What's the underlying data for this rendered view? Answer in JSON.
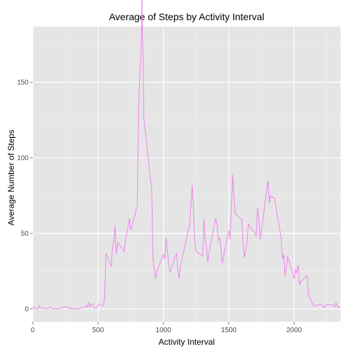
{
  "chart_data": {
    "type": "line",
    "title": "Average of Steps by Activity Interval",
    "xlabel": "Activity Interval",
    "ylabel": "Average Number of Steps",
    "xlim": [
      0,
      2355
    ],
    "ylim": [
      -8.5,
      187
    ],
    "xticks": [
      0,
      500,
      1000,
      1500,
      2000
    ],
    "yticks": [
      0,
      50,
      100,
      150
    ],
    "xtick_labels": [
      "0",
      "500",
      "1000",
      "1500",
      "2000"
    ],
    "ytick_labels": [
      "0",
      "50",
      "100",
      "150"
    ],
    "grid": true,
    "colors": {
      "panel": "#e5e5e5",
      "grid_major": "#ffffff",
      "grid_minor": "#f2f2f2",
      "line": "#ee82ee",
      "tick": "#7f7f7f"
    },
    "series": [
      {
        "x": [
          0,
          10,
          20,
          30,
          40,
          50,
          60,
          100,
          120,
          130,
          150,
          200,
          250,
          300,
          350,
          400,
          410,
          420,
          430,
          440,
          450,
          460,
          470,
          480,
          490,
          500,
          510,
          520,
          530,
          540,
          550,
          560,
          600,
          610,
          620,
          630,
          640,
          650,
          700,
          710,
          720,
          730,
          740,
          750,
          800,
          810,
          820,
          830,
          835,
          840,
          845,
          850,
          900,
          910,
          920,
          930,
          940,
          950,
          1000,
          1010,
          1020,
          1030,
          1040,
          1050,
          1100,
          1110,
          1120,
          1130,
          1140,
          1150,
          1200,
          1210,
          1220,
          1230,
          1240,
          1250,
          1300,
          1310,
          1320,
          1330,
          1340,
          1350,
          1400,
          1410,
          1420,
          1430,
          1440,
          1450,
          1500,
          1510,
          1520,
          1530,
          1540,
          1550,
          1600,
          1610,
          1620,
          1630,
          1640,
          1650,
          1700,
          1710,
          1720,
          1730,
          1740,
          1750,
          1800,
          1810,
          1820,
          1830,
          1840,
          1850,
          1900,
          1910,
          1920,
          1930,
          1940,
          1950,
          2000,
          2010,
          2020,
          2030,
          2040,
          2050,
          2100,
          2110,
          2120,
          2130,
          2140,
          2150,
          2200,
          2210,
          2220,
          2230,
          2240,
          2250,
          2300,
          2310,
          2320,
          2330,
          2340,
          2355
        ],
        "y": [
          1.7,
          0.3,
          0.1,
          0.2,
          0.1,
          2.1,
          0.5,
          0.3,
          0.0,
          1.5,
          0.2,
          0.0,
          1.5,
          0.0,
          0.2,
          1.2,
          2.5,
          0.9,
          4.1,
          1.2,
          3.2,
          3.3,
          0.7,
          0.3,
          0.5,
          2.7,
          3.2,
          3.0,
          2.1,
          2.3,
          7.0,
          37.0,
          28.0,
          40.0,
          45.0,
          55.0,
          36.0,
          44.0,
          38.0,
          46.0,
          50.0,
          55.0,
          60.0,
          52.0,
          68.0,
          129.0,
          157.0,
          171.0,
          206.0,
          179.0,
          164.0,
          127.0,
          87.0,
          80.0,
          33.0,
          27.0,
          20.0,
          25.0,
          36.0,
          33.0,
          47.0,
          39.0,
          30.0,
          24.0,
          37.0,
          26.0,
          20.0,
          28.0,
          32.0,
          36.0,
          56.0,
          68.0,
          82.0,
          64.0,
          45.0,
          38.0,
          35.0,
          60.0,
          46.0,
          40.0,
          31.0,
          38.0,
          60.0,
          56.0,
          45.0,
          47.0,
          40.0,
          30.0,
          52.0,
          46.0,
          67.0,
          89.0,
          74.0,
          63.0,
          59.0,
          42.0,
          34.0,
          39.0,
          45.0,
          56.0,
          50.0,
          48.0,
          67.0,
          60.0,
          46.0,
          52.0,
          85.0,
          70.0,
          75.0,
          74.0,
          74.0,
          73.0,
          47.0,
          33.0,
          36.0,
          22.0,
          27.0,
          35.0,
          20.0,
          26.0,
          24.0,
          29.0,
          16.0,
          18.0,
          22.0,
          9.0,
          8.0,
          5.0,
          4.0,
          2.0,
          3.0,
          3.0,
          1.5,
          1.0,
          2.0,
          3.0,
          2.5,
          1.0,
          4.0,
          2.0,
          1.0,
          1.1
        ]
      }
    ]
  }
}
